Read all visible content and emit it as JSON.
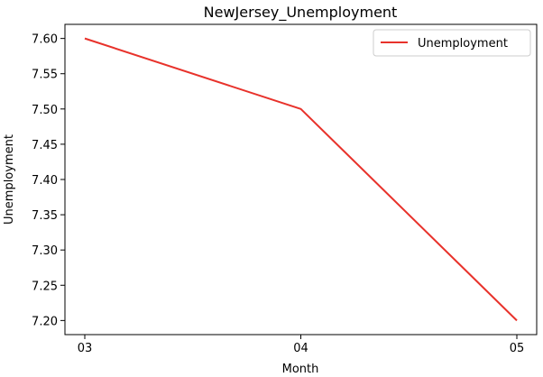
{
  "chart_data": {
    "type": "line",
    "title": "NewJersey_Unemployment",
    "xlabel": "Month",
    "ylabel": "Unemployment",
    "categories": [
      "03",
      "04",
      "05"
    ],
    "series": [
      {
        "name": "Unemployment",
        "color": "#e8322b",
        "values": [
          7.6,
          7.5,
          7.2
        ]
      }
    ],
    "ylim": [
      7.18,
      7.62
    ],
    "yticks": [
      "7.20",
      "7.25",
      "7.30",
      "7.35",
      "7.40",
      "7.45",
      "7.50",
      "7.55",
      "7.60"
    ],
    "legend": {
      "position": "top-right"
    },
    "grid": false
  }
}
